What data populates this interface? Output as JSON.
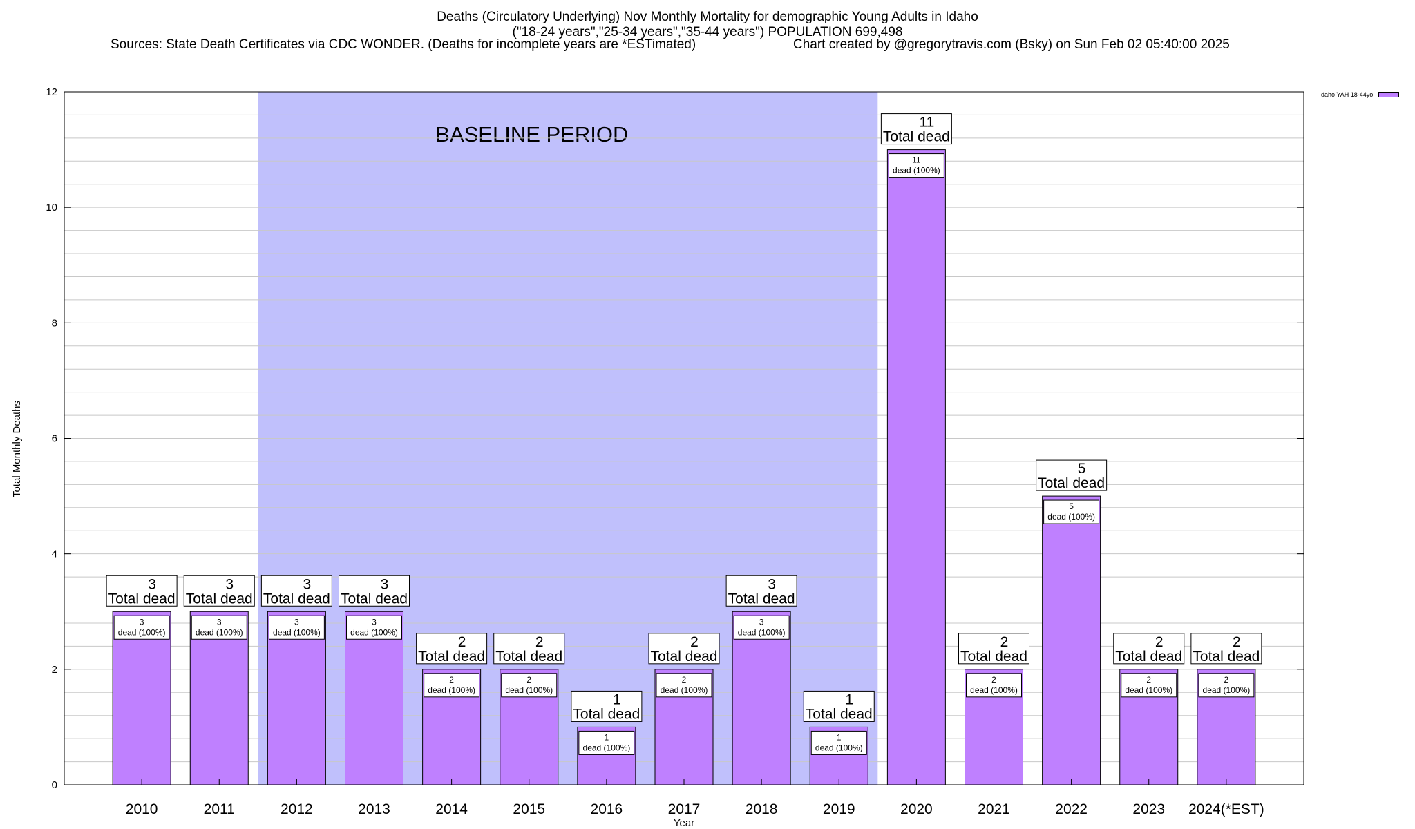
{
  "title": {
    "line1": "Deaths (Circulatory Underlying) Nov Monthly Mortality for demographic Young Adults in Idaho",
    "line2": "(\"18-24 years\",\"25-34 years\",\"35-44 years\") POPULATION 699,498",
    "sources": "Sources: State Death Certificates via CDC WONDER. (Deaths for incomplete years are *ESTimated)",
    "credit": "Chart created by @gregorytravis.com (Bsky) on Sun Feb 02 05:40:00 2025"
  },
  "colors": {
    "bar": "#bf80ff",
    "baseline_band": "#c0c0fc",
    "grid": "#c8c8c8"
  },
  "chart_data": {
    "type": "bar",
    "xlabel": "Year",
    "ylabel": "Total Monthly Deaths",
    "ylim": [
      0,
      12
    ],
    "yticks": [
      0,
      2,
      4,
      6,
      8,
      10,
      12
    ],
    "grid": true,
    "legend_position": "top-right",
    "categories": [
      "2010",
      "2011",
      "2012",
      "2013",
      "2014",
      "2015",
      "2016",
      "2017",
      "2018",
      "2019",
      "2020",
      "2021",
      "2022",
      "2023",
      "2024(*EST)"
    ],
    "series": [
      {
        "name": "daho YAH 18-44yo",
        "values": [
          3,
          3,
          3,
          3,
          2,
          2,
          1,
          2,
          3,
          1,
          11,
          2,
          5,
          2,
          2
        ]
      }
    ],
    "total_label": "Total dead",
    "inner_label_suffix": "dead (100%)",
    "annotation": {
      "text": "BASELINE PERIOD",
      "from_category": "2012",
      "to_category": "2019"
    }
  }
}
